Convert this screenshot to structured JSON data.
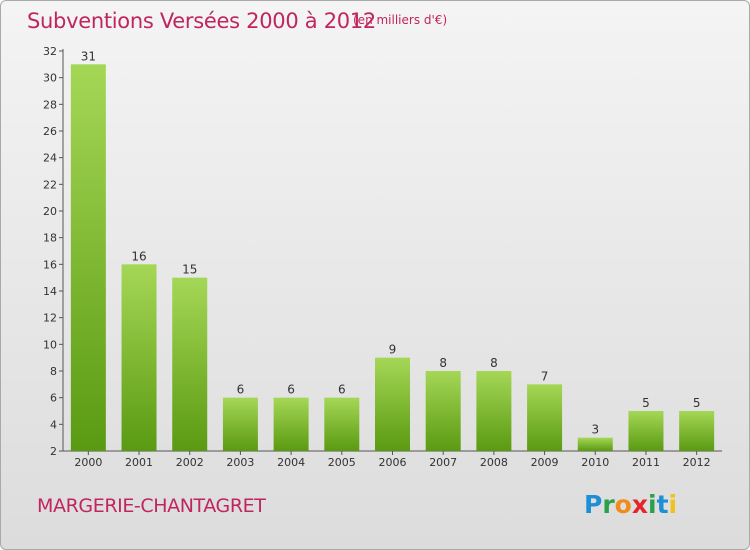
{
  "title": "Subventions Versées 2000 à 2012",
  "subtitle": "(en milliers d'€)",
  "city": "MARGERIE-CHANTAGRET",
  "logo": {
    "letters": [
      {
        "ch": "P",
        "color": "#1d8fd6"
      },
      {
        "ch": "r",
        "color": "#2aa04a"
      },
      {
        "ch": "o",
        "color": "#f08c1c"
      },
      {
        "ch": "x",
        "color": "#e4262a"
      },
      {
        "ch": "i",
        "color": "#2aa04a"
      },
      {
        "ch": "t",
        "color": "#1d8fd6"
      },
      {
        "ch": "i",
        "color": "#f0c21c"
      }
    ]
  },
  "colors": {
    "text_accent": "#c0255f",
    "bar_light": "#a5d756",
    "bar_dark": "#5a9a12",
    "axis": "#555555"
  },
  "chart_data": {
    "type": "bar",
    "categories": [
      "2000",
      "2001",
      "2002",
      "2003",
      "2004",
      "2005",
      "2006",
      "2007",
      "2008",
      "2009",
      "2010",
      "2011",
      "2012"
    ],
    "values": [
      31,
      16,
      15,
      6,
      6,
      6,
      9,
      8,
      8,
      7,
      3,
      5,
      5
    ],
    "ylim": [
      2,
      32
    ],
    "yticks": [
      2,
      4,
      6,
      8,
      10,
      12,
      14,
      16,
      18,
      20,
      22,
      24,
      26,
      28,
      30,
      32
    ],
    "grid": false,
    "legend": "none"
  }
}
